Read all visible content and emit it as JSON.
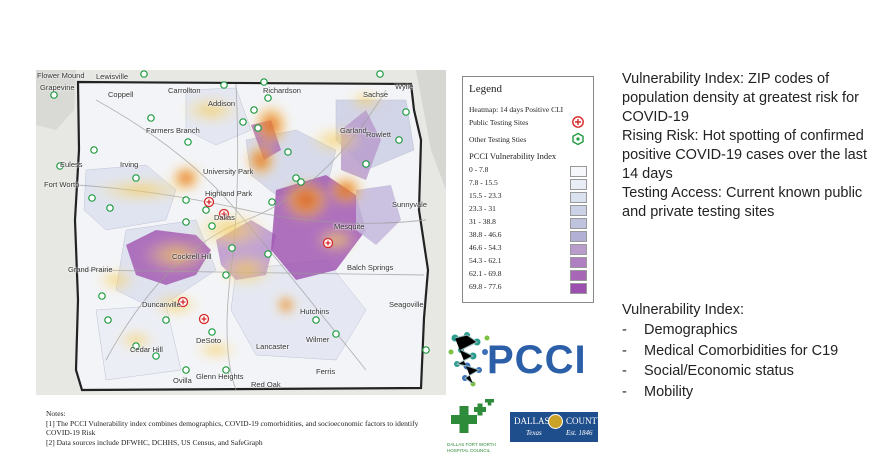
{
  "map": {
    "cities": [
      "Flower Mound",
      "Lewisville",
      "Grapevine",
      "Coppell",
      "Carrollton",
      "Richardson",
      "Wylie",
      "Sachse",
      "Addison",
      "Farmers Branch",
      "Garland",
      "Rowlett",
      "Euless",
      "Irving",
      "Fort Worth",
      "University Park",
      "Highland Park",
      "Dallas",
      "Sunnyvale",
      "Mesquite",
      "Grand Prairie",
      "Cockrell Hill",
      "Balch Springs",
      "Duncanville",
      "Hutchins",
      "Seagoville",
      "DeSoto",
      "Cedar Hill",
      "Lancaster",
      "Wilmer",
      "Ovilla",
      "Glenn Heights",
      "Ferris",
      "Red Oak"
    ]
  },
  "legend": {
    "title": "Legend",
    "heatmap": "Heatmap: 14 days Positive CLI",
    "public_sites": "Public Testing Sites",
    "other_sites": "Other Testing Sties",
    "index_title": "PCCI Vulnerability Index",
    "ranges": [
      "0 - 7.8",
      "7.8 - 15.5",
      "15.5 - 23.3",
      "23.3 - 31",
      "31 - 38.8",
      "38.8 - 46.6",
      "46.6 - 54.3",
      "54.3 - 62.1",
      "62.1 - 69.8",
      "69.8 - 77.6"
    ],
    "colors": [
      "#f6f7fb",
      "#e9edf6",
      "#dbe2ef",
      "#ccd2e6",
      "#bfc3de",
      "#b2b0d4",
      "#b99ccc",
      "#b07fc1",
      "#a866b7",
      "#9c4fae"
    ]
  },
  "info": {
    "vuln_label": "Vulnerability Index:",
    "vuln_text": " ZIP codes of population density at greatest risk for COVID-19",
    "rising_label": "Rising Risk:",
    "rising_text": " Hot spotting of confirmed positive COVID-19 cases over the last 14 days",
    "testing_label": "Testing Access:",
    "testing_text": " Current known public and private testing sites"
  },
  "components": {
    "title": "Vulnerability Index:",
    "items": [
      "Demographics",
      "Medical Comorbidities for C19",
      "Social/Economic status",
      "Mobility"
    ],
    "dash": "-"
  },
  "logos": {
    "pcci": "PCCI",
    "dfw_line1": "DALLAS FORT WORTH",
    "dfw_line2": "HOSPITAL COUNCIL",
    "county_line1": "DALLAS",
    "county_line2": "COUNTY",
    "county_line3": "Texas",
    "county_line4": "Est. 1846"
  },
  "notes": {
    "heading": "Notes:",
    "note1": "[1] The PCCI Vulnerability index combines demographics, COVID-19 comorbidities, and socioeconomic factors to identify COVID-19 Risk",
    "note2": "[2] Data sources include DFWHC, DCHHS, US Census, and SafeGraph"
  }
}
